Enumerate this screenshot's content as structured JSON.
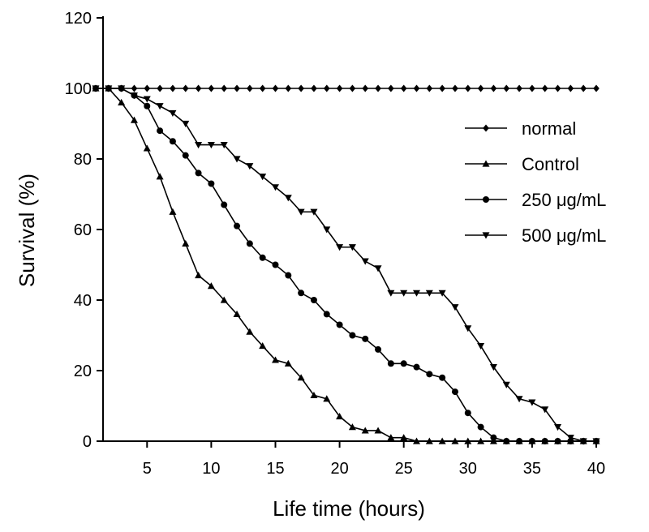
{
  "chart_data": {
    "type": "line",
    "title": "",
    "xlabel": "Life time (hours)",
    "ylabel": "Survival (%)",
    "xlim": [
      1,
      40
    ],
    "ylim": [
      0,
      120
    ],
    "xticks": [
      5,
      10,
      15,
      20,
      25,
      30,
      35,
      40
    ],
    "yticks": [
      0,
      20,
      40,
      60,
      80,
      100,
      120
    ],
    "grid": false,
    "legend_position": "right",
    "series": [
      {
        "name": "normal",
        "marker": "diamond",
        "x": [
          1,
          2,
          3,
          4,
          5,
          6,
          7,
          8,
          9,
          10,
          11,
          12,
          13,
          14,
          15,
          16,
          17,
          18,
          19,
          20,
          21,
          22,
          23,
          24,
          25,
          26,
          27,
          28,
          29,
          30,
          31,
          32,
          33,
          34,
          35,
          36,
          37,
          38,
          39,
          40
        ],
        "y": [
          100,
          100,
          100,
          100,
          100,
          100,
          100,
          100,
          100,
          100,
          100,
          100,
          100,
          100,
          100,
          100,
          100,
          100,
          100,
          100,
          100,
          100,
          100,
          100,
          100,
          100,
          100,
          100,
          100,
          100,
          100,
          100,
          100,
          100,
          100,
          100,
          100,
          100,
          100,
          100
        ]
      },
      {
        "name": "Control",
        "marker": "triangle-up",
        "x": [
          1,
          2,
          3,
          4,
          5,
          6,
          7,
          8,
          9,
          10,
          11,
          12,
          13,
          14,
          15,
          16,
          17,
          18,
          19,
          20,
          21,
          22,
          23,
          24,
          25,
          26,
          27,
          28,
          29,
          30,
          31,
          32,
          33,
          34,
          35,
          36,
          37,
          38,
          39,
          40
        ],
        "y": [
          100,
          100,
          96,
          91,
          83,
          75,
          65,
          56,
          47,
          44,
          40,
          36,
          31,
          27,
          23,
          22,
          18,
          13,
          12,
          7,
          4,
          3,
          3,
          1,
          1,
          0,
          0,
          0,
          0,
          0,
          0,
          0,
          0,
          0,
          0,
          0,
          0,
          0,
          0,
          0
        ]
      },
      {
        "name": "250  μg/mL",
        "marker": "circle",
        "x": [
          1,
          2,
          3,
          4,
          5,
          6,
          7,
          8,
          9,
          10,
          11,
          12,
          13,
          14,
          15,
          16,
          17,
          18,
          19,
          20,
          21,
          22,
          23,
          24,
          25,
          26,
          27,
          28,
          29,
          30,
          31,
          32,
          33,
          34,
          35,
          36,
          37,
          38,
          39,
          40
        ],
        "y": [
          100,
          100,
          100,
          98,
          95,
          88,
          85,
          81,
          76,
          73,
          67,
          61,
          56,
          52,
          50,
          47,
          42,
          40,
          36,
          33,
          30,
          29,
          26,
          22,
          22,
          21,
          19,
          18,
          14,
          8,
          4,
          1,
          0,
          0,
          0,
          0,
          0,
          0,
          0,
          0
        ]
      },
      {
        "name": "500  μg/mL",
        "marker": "triangle-down",
        "x": [
          1,
          2,
          3,
          4,
          5,
          6,
          7,
          8,
          9,
          10,
          11,
          12,
          13,
          14,
          15,
          16,
          17,
          18,
          19,
          20,
          21,
          22,
          23,
          24,
          25,
          26,
          27,
          28,
          29,
          30,
          31,
          32,
          33,
          34,
          35,
          36,
          37,
          38,
          39,
          40
        ],
        "y": [
          100,
          100,
          100,
          98,
          97,
          95,
          93,
          90,
          84,
          84,
          84,
          80,
          78,
          75,
          72,
          69,
          65,
          65,
          60,
          55,
          55,
          51,
          49,
          42,
          42,
          42,
          42,
          42,
          38,
          32,
          27,
          21,
          16,
          12,
          11,
          9,
          4,
          1,
          0,
          0
        ]
      }
    ]
  }
}
